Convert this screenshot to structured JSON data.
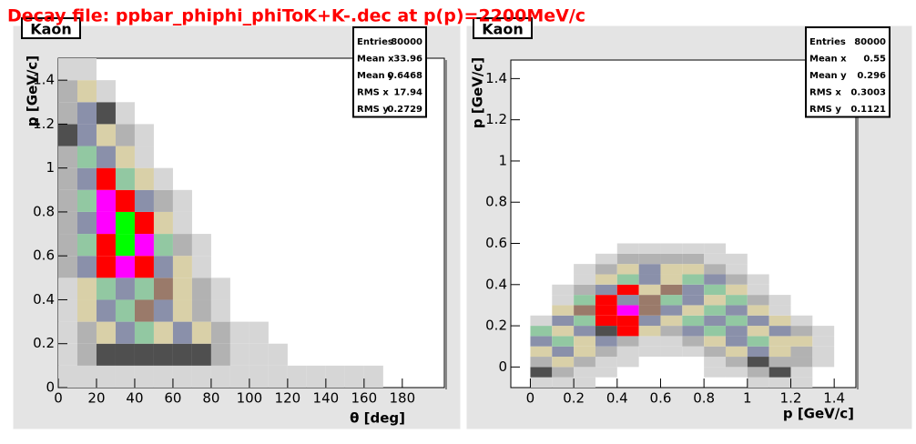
{
  "header": {
    "title": "Decay file: ppbar_phiphi_phiToK+K-.dec at p(p)=2200MeV/c"
  },
  "chart_data": [
    {
      "type": "heatmap",
      "pad_title": "Kaon",
      "xlabel": "θ [deg]",
      "ylabel": "p [GeV/c]",
      "xlim": [
        0,
        202
      ],
      "ylim": [
        0,
        1.5
      ],
      "xticks": [
        0,
        20,
        40,
        60,
        80,
        100,
        120,
        140,
        160,
        180
      ],
      "yticks": [
        0,
        0.2,
        0.4,
        0.6,
        0.8,
        1,
        1.2,
        1.4
      ],
      "palette": [
        "none",
        "#d6d6d6",
        "#b2b2b2",
        "#4f4f4f",
        "#d9d0a8",
        "#8a90aa",
        "#92c8a2",
        "#9a7a6a",
        "#ff0000",
        "#ff00ff",
        "#00ff00"
      ],
      "xbins": [
        0,
        10,
        20,
        30,
        40,
        50,
        60,
        70,
        80,
        90,
        100,
        110,
        120,
        130,
        140,
        150,
        160,
        170,
        180
      ],
      "ybins": [
        0,
        0.1,
        0.2,
        0.3,
        0.4,
        0.5,
        0.6,
        0.7,
        0.8,
        0.9,
        1.0,
        1.1,
        1.2,
        1.3,
        1.4,
        1.5
      ],
      "z": [
        [
          1,
          1,
          1,
          1,
          1,
          1,
          1,
          1,
          1,
          1,
          1,
          1,
          1,
          1,
          1,
          1,
          1,
          0
        ],
        [
          1,
          2,
          3,
          3,
          3,
          3,
          3,
          3,
          2,
          1,
          1,
          1,
          0,
          0,
          0,
          0,
          0,
          0
        ],
        [
          1,
          2,
          4,
          5,
          6,
          4,
          5,
          4,
          2,
          1,
          1,
          0,
          0,
          0,
          0,
          0,
          0,
          0
        ],
        [
          1,
          4,
          5,
          6,
          7,
          5,
          4,
          2,
          1,
          0,
          0,
          0,
          0,
          0,
          0,
          0,
          0,
          0
        ],
        [
          1,
          4,
          6,
          5,
          6,
          7,
          4,
          2,
          1,
          0,
          0,
          0,
          0,
          0,
          0,
          0,
          0,
          0
        ],
        [
          2,
          5,
          8,
          9,
          8,
          5,
          4,
          1,
          0,
          0,
          0,
          0,
          0,
          0,
          0,
          0,
          0,
          0
        ],
        [
          2,
          6,
          8,
          10,
          9,
          6,
          2,
          1,
          0,
          0,
          0,
          0,
          0,
          0,
          0,
          0,
          0,
          0
        ],
        [
          2,
          5,
          9,
          10,
          8,
          4,
          1,
          0,
          0,
          0,
          0,
          0,
          0,
          0,
          0,
          0,
          0,
          0
        ],
        [
          2,
          6,
          9,
          8,
          5,
          2,
          1,
          0,
          0,
          0,
          0,
          0,
          0,
          0,
          0,
          0,
          0,
          0
        ],
        [
          2,
          5,
          8,
          6,
          4,
          1,
          0,
          0,
          0,
          0,
          0,
          0,
          0,
          0,
          0,
          0,
          0,
          0
        ],
        [
          2,
          6,
          5,
          4,
          1,
          0,
          0,
          0,
          0,
          0,
          0,
          0,
          0,
          0,
          0,
          0,
          0,
          0
        ],
        [
          3,
          5,
          4,
          2,
          1,
          0,
          0,
          0,
          0,
          0,
          0,
          0,
          0,
          0,
          0,
          0,
          0,
          0
        ],
        [
          2,
          5,
          3,
          1,
          0,
          0,
          0,
          0,
          0,
          0,
          0,
          0,
          0,
          0,
          0,
          0,
          0,
          0
        ],
        [
          2,
          4,
          1,
          0,
          0,
          0,
          0,
          0,
          0,
          0,
          0,
          0,
          0,
          0,
          0,
          0,
          0,
          0
        ],
        [
          1,
          1,
          0,
          0,
          0,
          0,
          0,
          0,
          0,
          0,
          0,
          0,
          0,
          0,
          0,
          0,
          0,
          0
        ]
      ],
      "stats": [
        {
          "label": "Entries",
          "value": "80000"
        },
        {
          "label": "Mean x",
          "value": "33.96"
        },
        {
          "label": "Mean y",
          "value": "0.6468"
        },
        {
          "label": "RMS x",
          "value": "17.94"
        },
        {
          "label": "RMS y",
          "value": "0.2729"
        }
      ]
    },
    {
      "type": "heatmap",
      "pad_title": "Kaon",
      "xlabel": "p  [GeV/c]",
      "ylabel": "p [GeV/c]",
      "xlim": [
        -0.09,
        1.5
      ],
      "ylim": [
        -0.1,
        1.49
      ],
      "xticks": [
        0,
        0.2,
        0.4,
        0.6,
        0.8,
        1,
        1.2,
        1.4
      ],
      "yticks": [
        0,
        0.2,
        0.4,
        0.6,
        0.8,
        1,
        1.2,
        1.4
      ],
      "palette": [
        "none",
        "#d6d6d6",
        "#b2b2b2",
        "#4f4f4f",
        "#d9d0a8",
        "#8a90aa",
        "#92c8a2",
        "#9a7a6a",
        "#ff0000",
        "#ff00ff",
        "#00ff00"
      ],
      "xbins": [
        -0.1,
        0,
        0.1,
        0.2,
        0.3,
        0.4,
        0.5,
        0.6,
        0.7,
        0.8,
        0.9,
        1.0,
        1.1,
        1.2,
        1.3,
        1.4,
        1.5
      ],
      "ybins": [
        -0.1,
        -0.05,
        0,
        0.05,
        0.1,
        0.15,
        0.2,
        0.25,
        0.3,
        0.35,
        0.4,
        0.45,
        0.5,
        0.55,
        0.6
      ],
      "z": [
        [
          0,
          1,
          1,
          1,
          0,
          0,
          0,
          0,
          0,
          0,
          0,
          1,
          1,
          1,
          0,
          0
        ],
        [
          0,
          3,
          2,
          1,
          1,
          0,
          0,
          0,
          0,
          1,
          1,
          2,
          3,
          1,
          0,
          0
        ],
        [
          0,
          2,
          4,
          2,
          1,
          1,
          0,
          0,
          0,
          1,
          2,
          3,
          2,
          2,
          1,
          0
        ],
        [
          0,
          4,
          5,
          4,
          2,
          1,
          1,
          1,
          1,
          2,
          4,
          5,
          4,
          2,
          1,
          0
        ],
        [
          0,
          5,
          6,
          4,
          5,
          2,
          1,
          1,
          2,
          4,
          5,
          6,
          4,
          4,
          1,
          0
        ],
        [
          0,
          6,
          4,
          5,
          3,
          8,
          4,
          2,
          5,
          6,
          5,
          4,
          5,
          2,
          1,
          0
        ],
        [
          0,
          1,
          5,
          6,
          8,
          8,
          5,
          4,
          6,
          5,
          6,
          5,
          4,
          1,
          0,
          0
        ],
        [
          0,
          0,
          4,
          7,
          8,
          9,
          7,
          5,
          4,
          6,
          5,
          4,
          1,
          0,
          0,
          0
        ],
        [
          0,
          0,
          1,
          6,
          8,
          5,
          7,
          6,
          5,
          4,
          6,
          2,
          1,
          0,
          0,
          0
        ],
        [
          0,
          0,
          1,
          2,
          5,
          8,
          4,
          7,
          5,
          6,
          4,
          1,
          0,
          0,
          0,
          0
        ],
        [
          0,
          0,
          0,
          1,
          4,
          6,
          5,
          4,
          6,
          5,
          2,
          1,
          0,
          0,
          0,
          0
        ],
        [
          0,
          0,
          0,
          1,
          2,
          4,
          5,
          4,
          4,
          2,
          1,
          0,
          0,
          0,
          0,
          0
        ],
        [
          0,
          0,
          0,
          0,
          1,
          2,
          2,
          2,
          2,
          1,
          1,
          0,
          0,
          0,
          0,
          0
        ],
        [
          0,
          0,
          0,
          0,
          0,
          1,
          1,
          1,
          1,
          1,
          0,
          0,
          0,
          0,
          0,
          0
        ]
      ],
      "stats": [
        {
          "label": "Entries",
          "value": "80000"
        },
        {
          "label": "Mean x",
          "value": "0.55"
        },
        {
          "label": "Mean y",
          "value": "0.296"
        },
        {
          "label": "RMS x",
          "value": "0.3003"
        },
        {
          "label": "RMS y",
          "value": "0.1121"
        }
      ]
    }
  ]
}
